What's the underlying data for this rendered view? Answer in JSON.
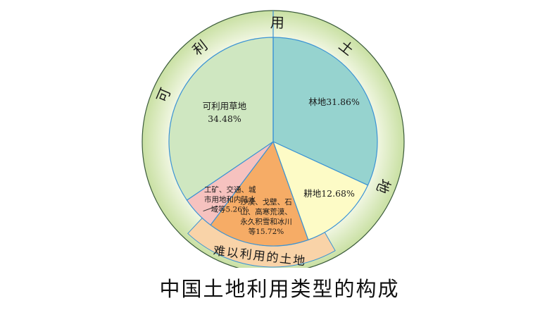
{
  "chart_data": {
    "type": "pie",
    "title": "中国土地利用类型的构成",
    "slices": [
      {
        "label": "林地",
        "value": 31.86,
        "display": "林地31.86%",
        "color": "#96d3cf"
      },
      {
        "label": "耕地",
        "value": 12.68,
        "display": "耕地12.68%",
        "color": "#fdfbc6"
      },
      {
        "label": "沙漠、戈壁、石山、高寒荒漠、永久积雪和冰川等",
        "value": 15.72,
        "display": [
          "沙漠、戈壁、石",
          "山、高寒荒漠、",
          "永久积雪和冰川",
          "等15.72%"
        ],
        "color": "#f6ac66"
      },
      {
        "label": "工矿、交通、城市用地和内陆水域等",
        "value": 5.26,
        "display": [
          "工矿、交通、城",
          "市用地和内陆水",
          "域等5.26%"
        ],
        "color": "#f6c2bf"
      },
      {
        "label": "可利用草地",
        "value": 34.48,
        "display": [
          "可利用草地",
          "34.48%"
        ],
        "color": "#cfe7c1"
      }
    ],
    "outer_ring_label": "可利用土地",
    "outer_ring_chars": [
      "可",
      "利",
      "用",
      "土",
      "地"
    ],
    "band_label": "难以利用的土地",
    "colors": {
      "outer_ring": "#d6e8b4",
      "band": "#f9d3a8",
      "divider": "#3b93d4",
      "outline": "#3a5a3a"
    }
  }
}
